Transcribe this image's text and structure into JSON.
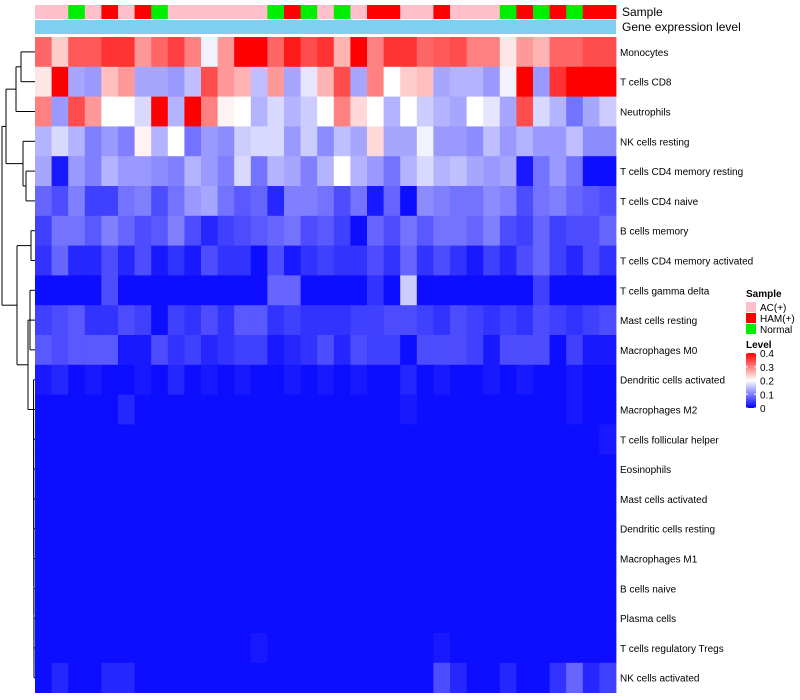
{
  "chart_data": {
    "type": "heatmap",
    "title": "",
    "annotation_titles": [
      "Sample",
      "Gene expression level"
    ],
    "rows": [
      "Monocytes",
      "T cells CD8",
      "Neutrophils",
      "NK cells resting",
      "T cells CD4 memory resting",
      "T cells CD4 naive",
      "B cells memory",
      "T cells CD4 memory activated",
      "T cells gamma delta",
      "Mast cells resting",
      "Macrophages M0",
      "Dendritic cells activated",
      "Macrophages M2",
      "T cells follicular helper",
      "Eosinophils",
      "Mast cells activated",
      "Dendritic cells resting",
      "Macrophages M1",
      "B cells naive",
      "Plasma cells",
      "T cells regulatory  Tregs",
      "NK cells activated"
    ],
    "sample_groups": [
      "AC(+)",
      "AC(+)",
      "Normal",
      "AC(+)",
      "HAM(+)",
      "AC(+)",
      "HAM(+)",
      "Normal",
      "AC(+)",
      "AC(+)",
      "AC(+)",
      "AC(+)",
      "AC(+)",
      "AC(+)",
      "Normal",
      "HAM(+)",
      "Normal",
      "AC(+)",
      "Normal",
      "AC(+)",
      "HAM(+)",
      "HAM(+)",
      "AC(+)",
      "AC(+)",
      "HAM(+)",
      "AC(+)",
      "AC(+)",
      "AC(+)",
      "Normal",
      "HAM(+)",
      "Normal",
      "HAM(+)",
      "Normal",
      "HAM(+)",
      "HAM(+)"
    ],
    "values": [
      [
        0.32,
        0.24,
        0.33,
        0.33,
        0.36,
        0.36,
        0.28,
        0.32,
        0.35,
        0.3,
        0.19,
        0.28,
        0.4,
        0.4,
        0.32,
        0.38,
        0.34,
        0.36,
        0.26,
        0.4,
        0.3,
        0.36,
        0.36,
        0.32,
        0.33,
        0.34,
        0.3,
        0.3,
        0.22,
        0.28,
        0.26,
        0.32,
        0.32,
        0.34,
        0.34
      ],
      [
        0.22,
        0.4,
        0.13,
        0.12,
        0.25,
        0.28,
        0.13,
        0.13,
        0.12,
        0.15,
        0.34,
        0.28,
        0.26,
        0.15,
        0.28,
        0.13,
        0.18,
        0.26,
        0.34,
        0.13,
        0.3,
        0.2,
        0.24,
        0.25,
        0.13,
        0.14,
        0.14,
        0.12,
        0.19,
        0.4,
        0.12,
        0.36,
        0.4,
        0.4,
        0.4
      ],
      [
        0.3,
        0.12,
        0.34,
        0.28,
        0.2,
        0.2,
        0.17,
        0.4,
        0.14,
        0.4,
        0.3,
        0.21,
        0.2,
        0.14,
        0.17,
        0.14,
        0.16,
        0.2,
        0.3,
        0.23,
        0.2,
        0.14,
        0.2,
        0.16,
        0.14,
        0.13,
        0.2,
        0.18,
        0.13,
        0.34,
        0.17,
        0.14,
        0.09,
        0.13,
        0.16
      ],
      [
        0.14,
        0.17,
        0.14,
        0.1,
        0.12,
        0.1,
        0.21,
        0.14,
        0.2,
        0.09,
        0.12,
        0.11,
        0.16,
        0.17,
        0.17,
        0.12,
        0.16,
        0.11,
        0.15,
        0.13,
        0.23,
        0.13,
        0.13,
        0.19,
        0.12,
        0.12,
        0.11,
        0.15,
        0.12,
        0.14,
        0.12,
        0.12,
        0.15,
        0.11,
        0.11
      ],
      [
        0.13,
        0.02,
        0.12,
        0.1,
        0.14,
        0.12,
        0.12,
        0.11,
        0.1,
        0.14,
        0.12,
        0.1,
        0.17,
        0.09,
        0.14,
        0.13,
        0.1,
        0.14,
        0.2,
        0.14,
        0.12,
        0.09,
        0.14,
        0.17,
        0.14,
        0.15,
        0.13,
        0.12,
        0.13,
        0.02,
        0.09,
        0.12,
        0.09,
        0.01,
        0.01
      ],
      [
        0.08,
        0.06,
        0.1,
        0.05,
        0.05,
        0.09,
        0.1,
        0.06,
        0.09,
        0.12,
        0.13,
        0.09,
        0.07,
        0.08,
        0.03,
        0.1,
        0.1,
        0.09,
        0.06,
        0.09,
        0.02,
        0.08,
        0.01,
        0.11,
        0.1,
        0.09,
        0.09,
        0.11,
        0.1,
        0.06,
        0.09,
        0.1,
        0.08,
        0.07,
        0.06
      ],
      [
        0.05,
        0.09,
        0.09,
        0.07,
        0.1,
        0.08,
        0.06,
        0.07,
        0.1,
        0.06,
        0.03,
        0.05,
        0.06,
        0.07,
        0.08,
        0.09,
        0.06,
        0.07,
        0.05,
        0.01,
        0.08,
        0.06,
        0.09,
        0.07,
        0.09,
        0.09,
        0.08,
        0.1,
        0.06,
        0.05,
        0.08,
        0.05,
        0.06,
        0.06,
        0.08
      ],
      [
        0.04,
        0.08,
        0.03,
        0.03,
        0.06,
        0.03,
        0.06,
        0.02,
        0.04,
        0.02,
        0.06,
        0.04,
        0.04,
        0.01,
        0.06,
        0.02,
        0.04,
        0.05,
        0.04,
        0.04,
        0.06,
        0.04,
        0.08,
        0.04,
        0.06,
        0.04,
        0.02,
        0.05,
        0.03,
        0.06,
        0.08,
        0.05,
        0.03,
        0.06,
        0.04
      ],
      [
        0.01,
        0.01,
        0.01,
        0.01,
        0.06,
        0.01,
        0.01,
        0.01,
        0.01,
        0.01,
        0.01,
        0.01,
        0.01,
        0.01,
        0.08,
        0.08,
        0.01,
        0.01,
        0.01,
        0.01,
        0.04,
        0.01,
        0.16,
        0.01,
        0.01,
        0.01,
        0.01,
        0.01,
        0.01,
        0.01,
        0.05,
        0.01,
        0.01,
        0.01,
        0.01
      ],
      [
        0.05,
        0.06,
        0.07,
        0.04,
        0.04,
        0.06,
        0.05,
        0.01,
        0.05,
        0.04,
        0.06,
        0.04,
        0.07,
        0.07,
        0.04,
        0.05,
        0.04,
        0.04,
        0.04,
        0.05,
        0.05,
        0.06,
        0.06,
        0.05,
        0.04,
        0.06,
        0.05,
        0.04,
        0.05,
        0.04,
        0.06,
        0.05,
        0.04,
        0.05,
        0.06
      ],
      [
        0.07,
        0.06,
        0.07,
        0.07,
        0.07,
        0.02,
        0.02,
        0.06,
        0.04,
        0.05,
        0.03,
        0.04,
        0.05,
        0.05,
        0.02,
        0.03,
        0.04,
        0.06,
        0.03,
        0.06,
        0.05,
        0.05,
        0.01,
        0.06,
        0.06,
        0.06,
        0.05,
        0.02,
        0.06,
        0.06,
        0.06,
        0.01,
        0.05,
        0.02,
        0.02
      ],
      [
        0.02,
        0.03,
        0.01,
        0.02,
        0.01,
        0.01,
        0.02,
        0.01,
        0.03,
        0.01,
        0.02,
        0.01,
        0.02,
        0.01,
        0.01,
        0.02,
        0.01,
        0.02,
        0.01,
        0.02,
        0.01,
        0.01,
        0.03,
        0.01,
        0.02,
        0.01,
        0.01,
        0.02,
        0.01,
        0.02,
        0.01,
        0.01,
        0.02,
        0.01,
        0.01
      ],
      [
        0.01,
        0.01,
        0.01,
        0.01,
        0.01,
        0.03,
        0.01,
        0.01,
        0.01,
        0.01,
        0.01,
        0.01,
        0.01,
        0.01,
        0.01,
        0.01,
        0.01,
        0.01,
        0.01,
        0.01,
        0.01,
        0.01,
        0.02,
        0.01,
        0.01,
        0.01,
        0.01,
        0.01,
        0.01,
        0.01,
        0.01,
        0.01,
        0.02,
        0.01,
        0.01
      ],
      [
        0.01,
        0.01,
        0.01,
        0.01,
        0.01,
        0.01,
        0.01,
        0.01,
        0.01,
        0.01,
        0.01,
        0.01,
        0.01,
        0.01,
        0.01,
        0.01,
        0.01,
        0.01,
        0.01,
        0.01,
        0.01,
        0.01,
        0.01,
        0.01,
        0.01,
        0.01,
        0.01,
        0.01,
        0.01,
        0.01,
        0.01,
        0.01,
        0.01,
        0.01,
        0.02
      ],
      [
        0.01,
        0.01,
        0.01,
        0.01,
        0.01,
        0.01,
        0.01,
        0.01,
        0.01,
        0.01,
        0.01,
        0.01,
        0.01,
        0.01,
        0.01,
        0.01,
        0.01,
        0.01,
        0.01,
        0.01,
        0.01,
        0.01,
        0.01,
        0.01,
        0.01,
        0.01,
        0.01,
        0.01,
        0.01,
        0.01,
        0.01,
        0.01,
        0.01,
        0.01,
        0.01
      ],
      [
        0.01,
        0.01,
        0.01,
        0.01,
        0.01,
        0.01,
        0.01,
        0.01,
        0.01,
        0.01,
        0.01,
        0.01,
        0.01,
        0.01,
        0.01,
        0.01,
        0.01,
        0.01,
        0.01,
        0.01,
        0.01,
        0.01,
        0.01,
        0.01,
        0.01,
        0.01,
        0.01,
        0.01,
        0.01,
        0.01,
        0.01,
        0.01,
        0.01,
        0.01,
        0.01
      ],
      [
        0.01,
        0.01,
        0.01,
        0.01,
        0.01,
        0.01,
        0.01,
        0.01,
        0.01,
        0.01,
        0.01,
        0.01,
        0.01,
        0.01,
        0.01,
        0.01,
        0.01,
        0.01,
        0.01,
        0.01,
        0.01,
        0.01,
        0.01,
        0.01,
        0.01,
        0.01,
        0.01,
        0.01,
        0.01,
        0.01,
        0.01,
        0.01,
        0.01,
        0.01,
        0.01
      ],
      [
        0.01,
        0.01,
        0.01,
        0.01,
        0.01,
        0.01,
        0.01,
        0.01,
        0.01,
        0.01,
        0.01,
        0.01,
        0.01,
        0.01,
        0.01,
        0.01,
        0.01,
        0.01,
        0.01,
        0.01,
        0.01,
        0.01,
        0.01,
        0.01,
        0.01,
        0.01,
        0.01,
        0.01,
        0.01,
        0.01,
        0.01,
        0.01,
        0.01,
        0.01,
        0.01
      ],
      [
        0.01,
        0.01,
        0.01,
        0.01,
        0.01,
        0.01,
        0.01,
        0.01,
        0.01,
        0.01,
        0.01,
        0.01,
        0.01,
        0.01,
        0.01,
        0.01,
        0.01,
        0.01,
        0.01,
        0.01,
        0.01,
        0.01,
        0.01,
        0.01,
        0.01,
        0.01,
        0.01,
        0.01,
        0.01,
        0.01,
        0.01,
        0.01,
        0.01,
        0.01,
        0.01
      ],
      [
        0.01,
        0.01,
        0.01,
        0.01,
        0.01,
        0.01,
        0.01,
        0.01,
        0.01,
        0.01,
        0.01,
        0.01,
        0.01,
        0.01,
        0.01,
        0.01,
        0.01,
        0.01,
        0.01,
        0.01,
        0.01,
        0.01,
        0.01,
        0.01,
        0.01,
        0.01,
        0.01,
        0.01,
        0.01,
        0.01,
        0.01,
        0.01,
        0.01,
        0.01,
        0.01
      ],
      [
        0.01,
        0.01,
        0.01,
        0.01,
        0.01,
        0.01,
        0.01,
        0.01,
        0.01,
        0.01,
        0.01,
        0.01,
        0.01,
        0.02,
        0.01,
        0.01,
        0.01,
        0.01,
        0.01,
        0.01,
        0.01,
        0.01,
        0.01,
        0.01,
        0.02,
        0.01,
        0.01,
        0.01,
        0.01,
        0.01,
        0.01,
        0.01,
        0.01,
        0.01,
        0.01
      ],
      [
        0.01,
        0.03,
        0.01,
        0.01,
        0.03,
        0.03,
        0.01,
        0.01,
        0.01,
        0.01,
        0.01,
        0.01,
        0.01,
        0.01,
        0.01,
        0.01,
        0.01,
        0.01,
        0.01,
        0.01,
        0.01,
        0.01,
        0.01,
        0.01,
        0.06,
        0.03,
        0.01,
        0.01,
        0.03,
        0.01,
        0.01,
        0.04,
        0.08,
        0.03,
        0.05
      ]
    ],
    "legend_sample": {
      "title": "Sample",
      "entries": [
        {
          "label": "AC(+)",
          "color": "#ffc0cb"
        },
        {
          "label": "HAM(+)",
          "color": "#ff0000"
        },
        {
          "label": "Normal",
          "color": "#00ee00"
        }
      ]
    },
    "legend_level": {
      "title": "Level",
      "ticks": [
        "0.4",
        "0.3",
        "0.2",
        "0.1",
        "0"
      ],
      "tick_values": [
        0.4,
        0.3,
        0.2,
        0.1,
        0.0
      ],
      "range": [
        0,
        0.4
      ]
    },
    "colors": {
      "low": "#0000ff",
      "mid": "#ffffff",
      "high": "#ff0000",
      "midpoint": 0.2,
      "expression_bar": "#7fcff0"
    }
  }
}
